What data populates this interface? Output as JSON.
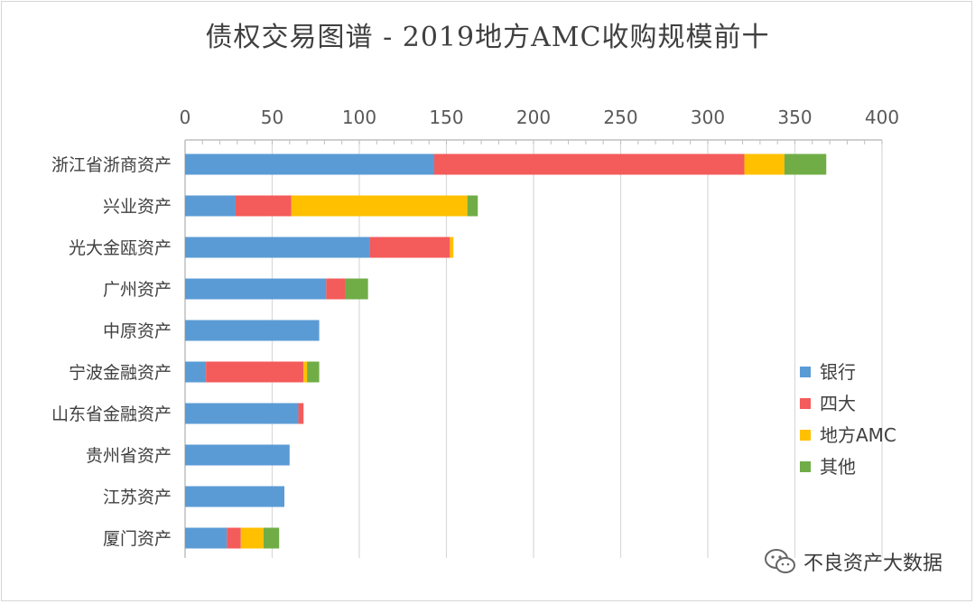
{
  "chart_data": {
    "type": "bar",
    "orientation": "horizontal",
    "stacked": true,
    "title": "债权交易图谱 - 2019地方AMC收购规模前十",
    "xlabel": "",
    "ylabel": "",
    "xlim": [
      0,
      400
    ],
    "x_ticks": [
      0,
      50,
      100,
      150,
      200,
      250,
      300,
      350,
      400
    ],
    "x_axis_position": "top",
    "grid": true,
    "legend_position": "right",
    "categories": [
      "浙江省浙商资产",
      "兴业资产",
      "光大金瓯资产",
      "广州资产",
      "中原资产",
      "宁波金融资产",
      "山东省金融资产",
      "贵州省资产",
      "江苏资产",
      "厦门资产"
    ],
    "series": [
      {
        "name": "银行",
        "color": "#5b9bd5",
        "values": [
          143,
          29,
          106,
          81,
          77,
          12,
          65,
          60,
          57,
          24
        ]
      },
      {
        "name": "四大",
        "color": "#f45b5b",
        "values": [
          178,
          32,
          46,
          11,
          0,
          56,
          3,
          0,
          0,
          8
        ]
      },
      {
        "name": "地方AMC",
        "color": "#ffc000",
        "values": [
          23,
          101,
          2,
          0,
          0,
          2,
          0,
          0,
          0,
          13
        ]
      },
      {
        "name": "其他",
        "color": "#70ad47",
        "values": [
          24,
          6,
          0,
          13,
          0,
          7,
          0,
          0,
          0,
          9
        ]
      }
    ]
  },
  "watermark": {
    "icon": "wechat-icon",
    "text": "不良资产大数据"
  }
}
